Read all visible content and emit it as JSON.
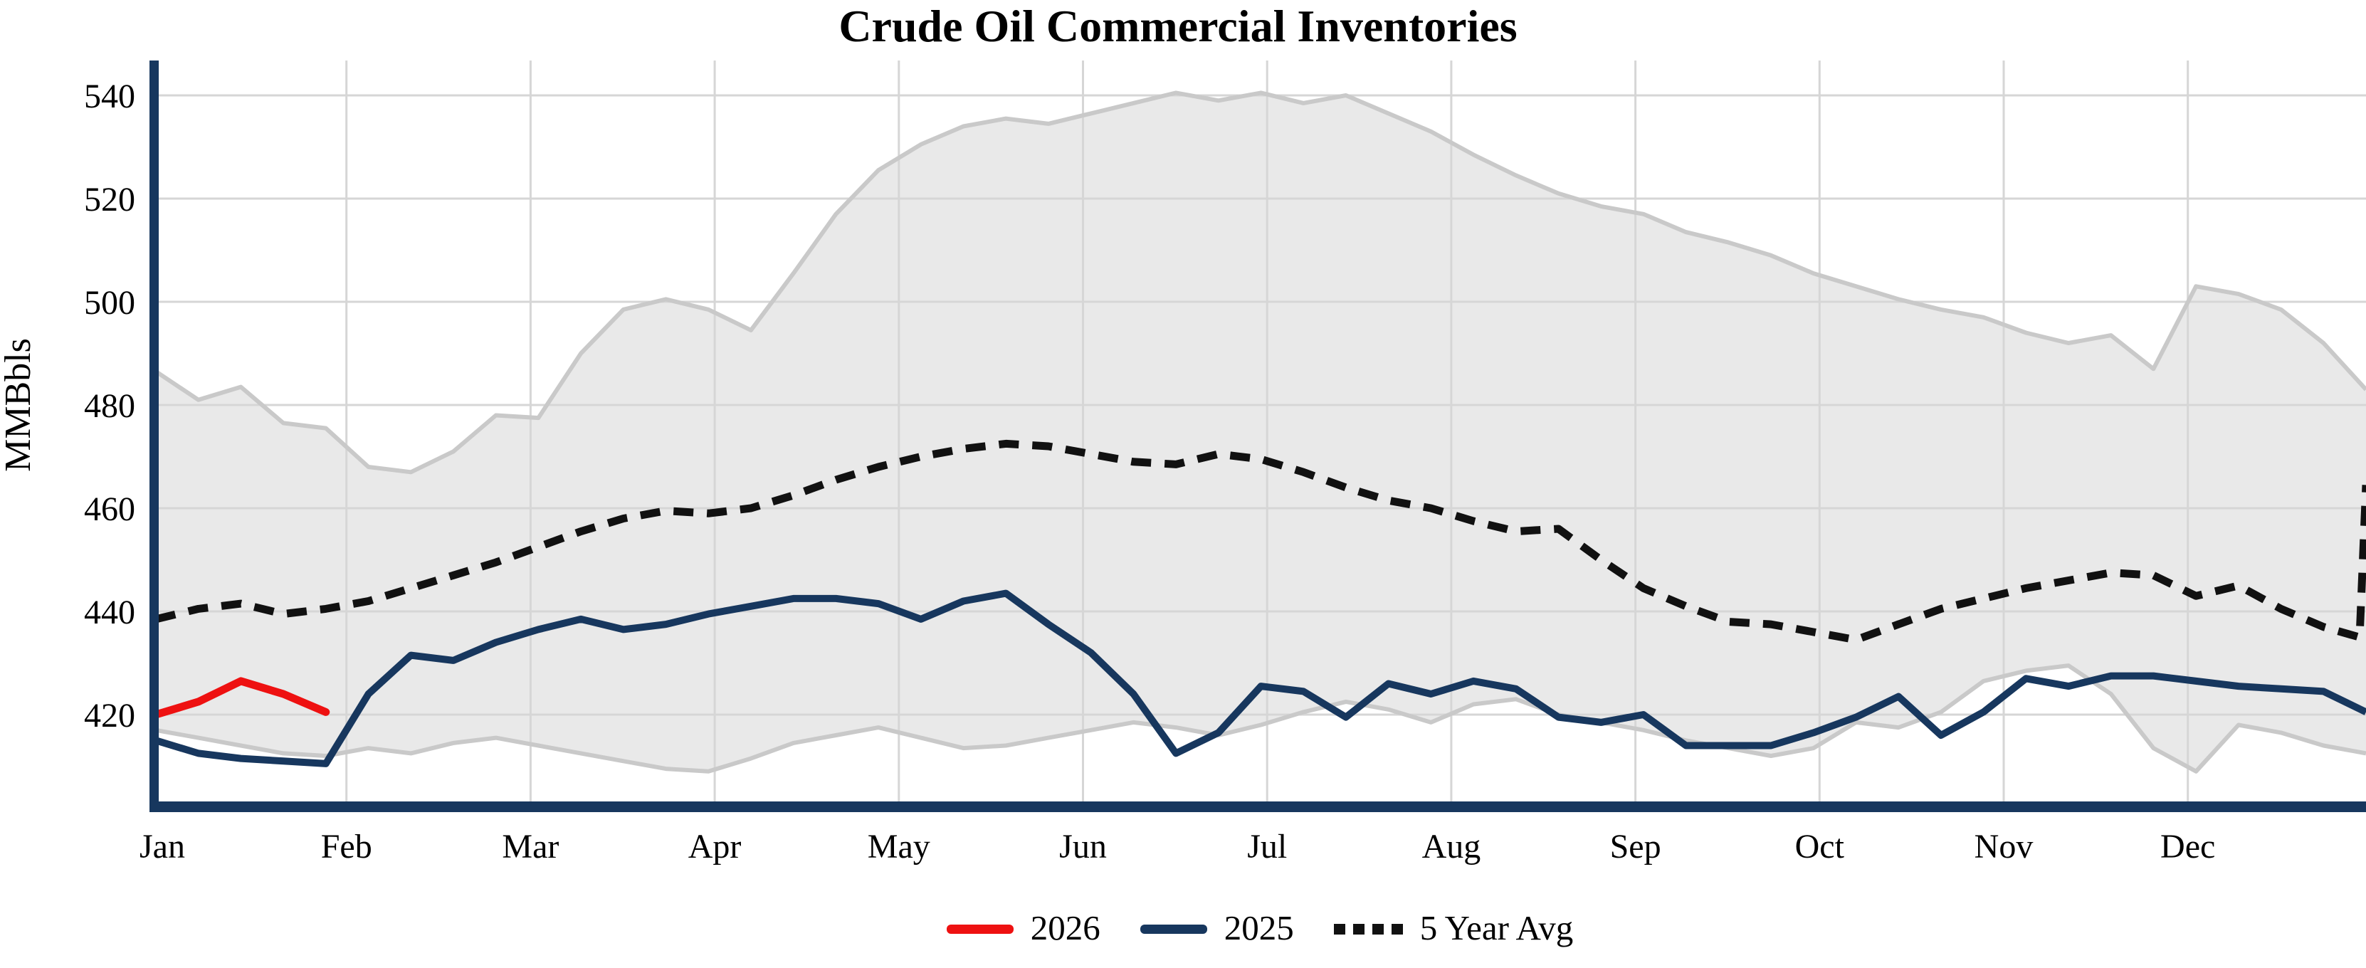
{
  "chart": {
    "title": "Crude Oil Commercial Inventories",
    "y_axis_label": "MMBbls"
  },
  "legend": {
    "items": [
      {
        "label": "2026",
        "style": "solid",
        "color": "#ee1111"
      },
      {
        "label": "2025",
        "style": "solid",
        "color": "#17375e"
      },
      {
        "label": "5 Year Avg",
        "style": "dashed",
        "color": "#111111"
      }
    ]
  },
  "colors": {
    "band_fill": "#e9e9e9",
    "band_edge": "#c9c9c9",
    "gridline": "#d6d6d6",
    "axis_spine": "#17375e",
    "avg_line": "#111111",
    "line_2025": "#17375e",
    "line_2026": "#ee1111",
    "text": "#000000"
  },
  "chart_data": {
    "type": "line",
    "title": "Crude Oil Commercial Inventories",
    "ylabel": "MMBbls",
    "xlabel": "",
    "x_unit": "weeks",
    "weeks": 53,
    "ylim": [
      404,
      547
    ],
    "yticks": [
      420,
      440,
      460,
      480,
      500,
      520,
      540
    ],
    "months": [
      "Jan",
      "Feb",
      "Mar",
      "Apr",
      "May",
      "Jun",
      "Jul",
      "Aug",
      "Sep",
      "Oct",
      "Nov",
      "Dec"
    ],
    "grid": true,
    "legend_position": "bottom",
    "band": {
      "name": "5 Year Range",
      "top": [
        486.5,
        481,
        483.5,
        476.5,
        475.5,
        468,
        467,
        471,
        478,
        477.5,
        490,
        498.5,
        500.5,
        498.5,
        494.5,
        505.5,
        517,
        525.5,
        530.5,
        534,
        535.5,
        534.5,
        536.5,
        538.5,
        540.5,
        539,
        540.5,
        538.5,
        540,
        536.5,
        533,
        528.5,
        524.5,
        521,
        518.5,
        517,
        513.5,
        511.5,
        509,
        505.5,
        503,
        500.5,
        498.5,
        497,
        494,
        492,
        493.5,
        487,
        503,
        501.5,
        498.5,
        492,
        483
      ],
      "bottom": [
        417,
        415.5,
        414,
        412.5,
        412,
        413.5,
        412.5,
        414.5,
        415.5,
        414,
        412.5,
        411,
        409.5,
        409,
        411.5,
        414.5,
        416,
        417.5,
        415.5,
        413.5,
        414,
        415.5,
        417,
        418.5,
        417.5,
        416,
        418,
        420.5,
        422.5,
        421,
        418.5,
        422,
        423,
        420,
        418.5,
        417,
        415,
        413.5,
        412,
        413.5,
        418.5,
        417.5,
        420.5,
        426.5,
        428.5,
        429.5,
        424,
        413.5,
        409,
        418,
        416.5,
        414,
        412.5
      ]
    },
    "series": [
      {
        "name": "5 Year Avg",
        "style": "dashed",
        "x": [
          0,
          1,
          2,
          3,
          4,
          5,
          6,
          7,
          8,
          9,
          10,
          11,
          12,
          13,
          14,
          15,
          16,
          17,
          18,
          19,
          20,
          21,
          22,
          23,
          24,
          25,
          26,
          27,
          28,
          29,
          30,
          31,
          32,
          33,
          34,
          35,
          36,
          37,
          38,
          39,
          40,
          41,
          42,
          43,
          44,
          45,
          46,
          47,
          48,
          49,
          50,
          51,
          51.85,
          52
        ],
        "values": [
          438.5,
          440.5,
          441.5,
          439.5,
          440.5,
          442,
          444.5,
          447,
          449.5,
          452.5,
          455.5,
          458,
          459.5,
          459,
          460,
          462.5,
          465.5,
          468,
          470,
          471.5,
          472.5,
          472,
          470.5,
          469,
          468.5,
          470.5,
          469.5,
          467,
          464,
          461.5,
          460,
          457.5,
          455.5,
          456,
          450,
          444.5,
          441,
          438,
          437.5,
          436,
          434.5,
          437.5,
          440.5,
          442.5,
          444.5,
          446,
          447.5,
          447,
          443,
          445,
          440.5,
          437,
          435,
          464.5
        ]
      },
      {
        "name": "2025",
        "style": "solid",
        "values": [
          415,
          412.5,
          411.5,
          411,
          410.5,
          424,
          431.5,
          430.5,
          434,
          436.5,
          438.5,
          436.5,
          437.5,
          439.5,
          441,
          442.5,
          442.5,
          441.5,
          438.5,
          442,
          443.5,
          437.5,
          432,
          424,
          412.5,
          416.5,
          425.5,
          424.5,
          419.5,
          426,
          424,
          426.5,
          425,
          419.5,
          418.5,
          420,
          414,
          414,
          414,
          416.5,
          419.5,
          423.5,
          416,
          420.5,
          427,
          425.5,
          427.5,
          427.5,
          426.5,
          425.5,
          425,
          424.5,
          420.5
        ]
      },
      {
        "name": "2026",
        "style": "solid",
        "values": [
          420,
          422.5,
          426.5,
          424,
          420.5
        ]
      }
    ]
  }
}
